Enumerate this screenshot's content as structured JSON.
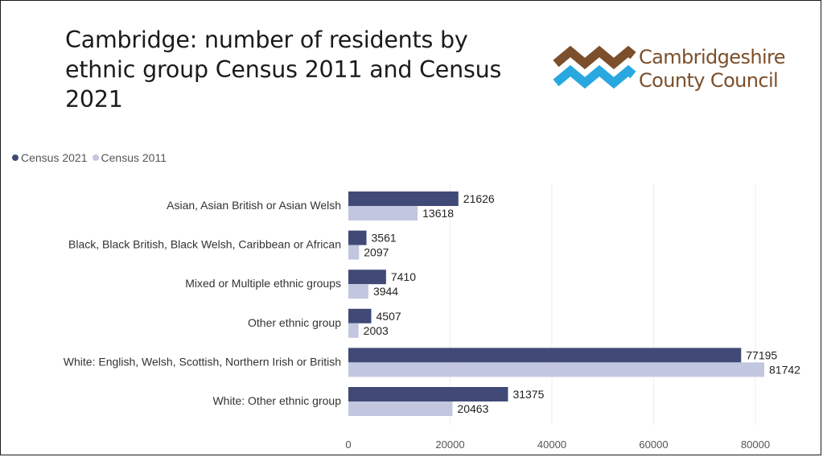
{
  "page": {
    "title": "Cambridge: number of residents by ethnic group Census 2011 and Census 2021",
    "logo": {
      "name": "cambridgeshire-county-council-logo",
      "text_line1": "Cambridgeshire",
      "text_line2": "County Council",
      "colors": {
        "brown": "#7b4f2b",
        "blue": "#29a8e0"
      }
    }
  },
  "chart_data": {
    "type": "bar",
    "orientation": "horizontal",
    "title": "",
    "xlabel": "",
    "ylabel": "",
    "categories": [
      "Asian, Asian British or Asian Welsh",
      "Black, Black British, Black Welsh, Caribbean or African",
      "Mixed or Multiple ethnic groups",
      "Other ethnic group",
      "White: English, Welsh, Scottish, Northern Irish or British",
      "White: Other ethnic group"
    ],
    "series": [
      {
        "name": "Census 2021",
        "color": "#414a76",
        "values": [
          21626,
          3561,
          7410,
          4507,
          77195,
          31375
        ]
      },
      {
        "name": "Census 2011",
        "color": "#c2c7df",
        "values": [
          13618,
          2097,
          3944,
          2003,
          81742,
          20463
        ]
      }
    ],
    "xlim": [
      0,
      85000
    ],
    "xticks": [
      0,
      20000,
      40000,
      60000,
      80000
    ],
    "grid": true,
    "data_labels": true,
    "legend": "top-left"
  }
}
